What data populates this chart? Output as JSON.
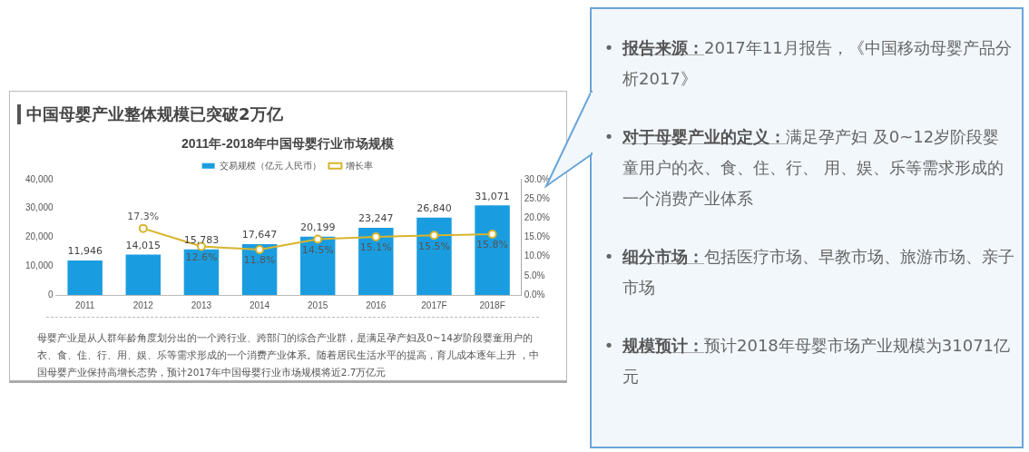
{
  "chart_data": {
    "type": "bar",
    "title": "中国母婴产业整体规模已突破2万亿",
    "subtitle": "2011年-2018年中国母婴行业市场规模",
    "categories": [
      "2011",
      "2012",
      "2013",
      "2014",
      "2015",
      "2016",
      "2017F",
      "2018F"
    ],
    "series": [
      {
        "name": "交易规模（亿元 人民币）",
        "color": "#1a9de0",
        "values": [
          11946,
          14015,
          15783,
          17647,
          20199,
          23247,
          26840,
          31071
        ],
        "value_labels": [
          "11,946",
          "14,015",
          "15,783",
          "17,647",
          "20,199",
          "23,247",
          "26,840",
          "31,071"
        ]
      },
      {
        "name": "增长率",
        "type": "line",
        "axis": "y2",
        "color": "#d8b42c",
        "marker": "circle",
        "values": [
          null,
          17.3,
          12.6,
          11.8,
          14.5,
          15.1,
          15.5,
          15.8
        ],
        "value_labels": [
          null,
          "17.3%",
          "12.6%",
          "11.8%",
          "14.5%",
          "15.1%",
          "15.5%",
          "15.8%"
        ]
      }
    ],
    "ylim": [
      0,
      40000
    ],
    "yticks": [
      {
        "value": 0,
        "label": "0"
      },
      {
        "value": 10000,
        "label": "10,000"
      },
      {
        "value": 20000,
        "label": "20,000"
      },
      {
        "value": 30000,
        "label": "30,000"
      },
      {
        "value": 40000,
        "label": "40,000"
      }
    ],
    "y2lim": [
      0,
      30
    ],
    "y2ticks": [
      {
        "value": 0,
        "label": "0.0%"
      },
      {
        "value": 5,
        "label": "5.0%"
      },
      {
        "value": 10,
        "label": "10.0%"
      },
      {
        "value": 15,
        "label": "15.0%"
      },
      {
        "value": 20,
        "label": "20.0%"
      },
      {
        "value": 25,
        "label": "25.0%"
      },
      {
        "value": 30,
        "label": "30.0%"
      }
    ],
    "grid": false,
    "legend": "top",
    "annotations": [
      "母婴产业是从人群年龄角度划分出的一个跨行业、跨部门的综合产业群，是满足孕产妇及0~14岁阶段婴童用户的衣、食、住、行、用、娱、乐等需求形成的一个消费产业体系。随着居民生活水平的提高，育儿成本逐年上升 ，中国母婴产业保持高增长态势，预计2017年中国母婴行业市场规模将近2.7万亿元",
      "• 报告来源：2017年11月报告，《中国移动母婴产品分析2017》",
      "• 对于母婴产业的定义：满足孕产妇 及0~12岁阶段婴童用户的衣、食、住、行、 用、娱、乐等需求形成的一个消费产业体系",
      "• 细分市场：包括医疗市场、早教市场、旅游市场、亲子市场",
      "• 规模预计：预计2018年母婴市场产业规模为31071亿元"
    ]
  }
}
